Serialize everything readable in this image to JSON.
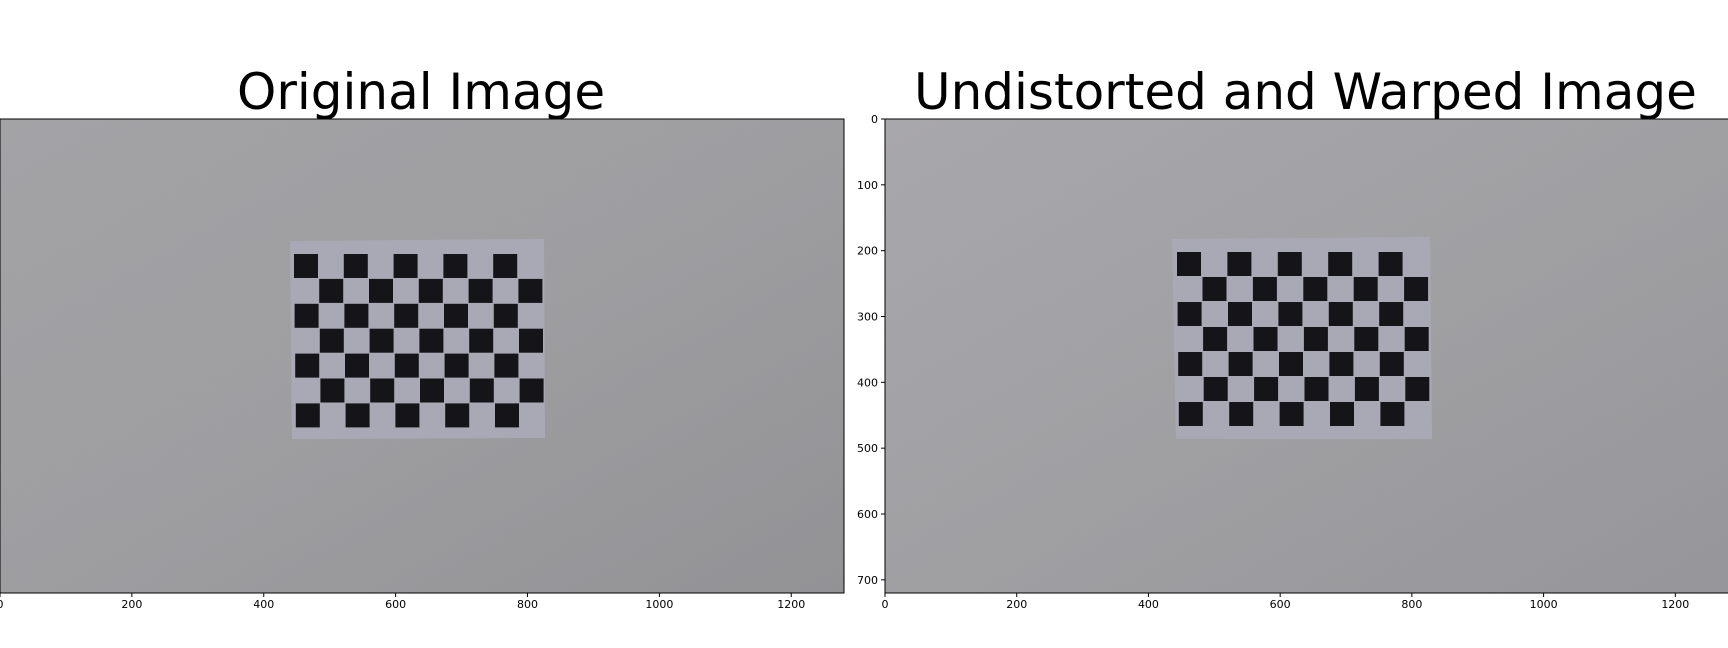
{
  "panels": [
    {
      "title": "Original Image",
      "x_ticks": [
        "0",
        "200",
        "400",
        "600",
        "800",
        "1000",
        "1200"
      ],
      "y_ticks": []
    },
    {
      "title": "Undistorted and Warped Image",
      "x_ticks": [
        "0",
        "200",
        "400",
        "600",
        "800",
        "1000",
        "1200"
      ],
      "y_ticks": [
        "0",
        "100",
        "200",
        "300",
        "400",
        "500",
        "600",
        "700"
      ]
    }
  ],
  "colors": {
    "wall": "#9c9c9f",
    "paper": "#a9a9b5",
    "square": "#151418",
    "axis": "#000000"
  }
}
